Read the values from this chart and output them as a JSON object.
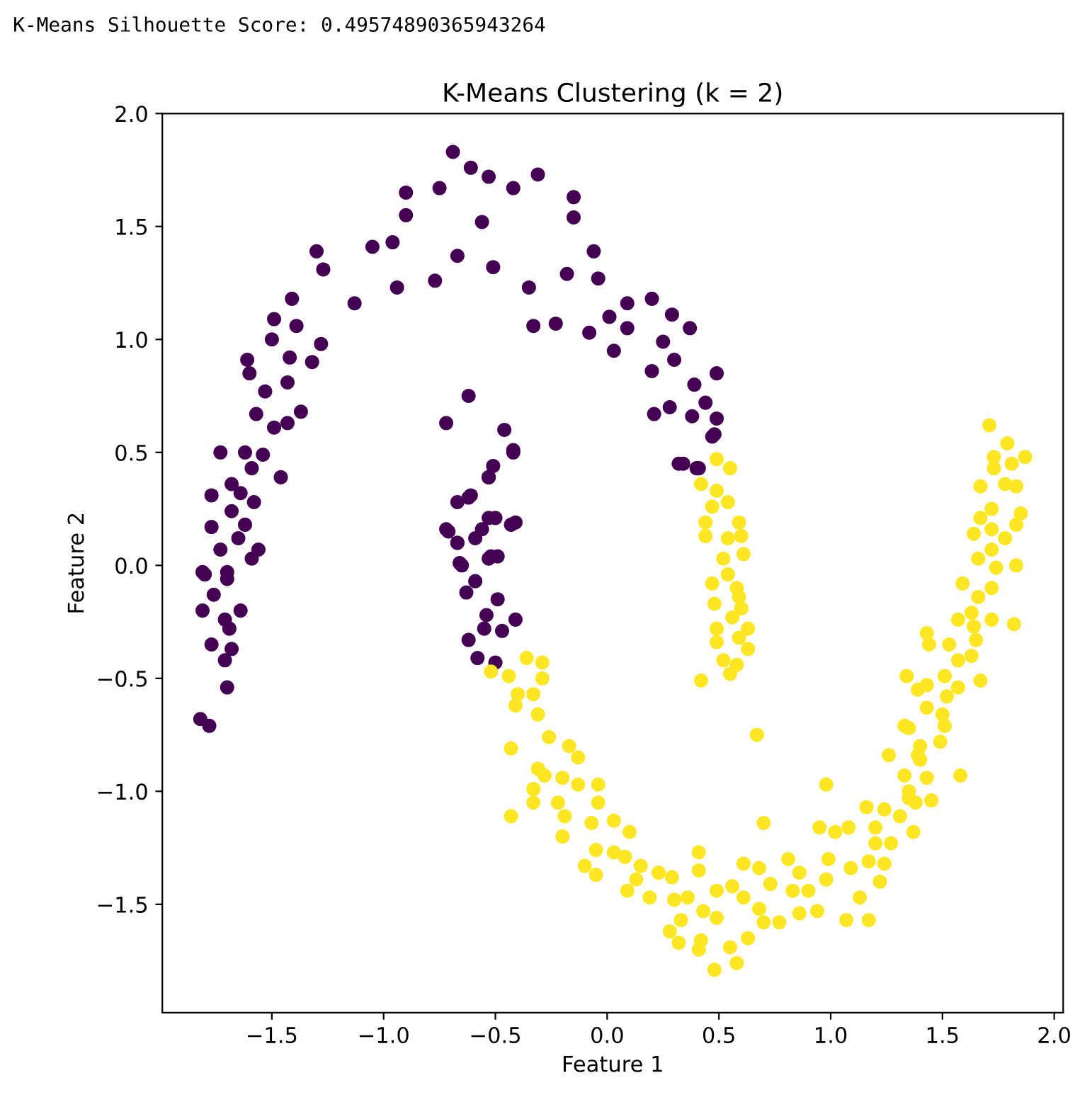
{
  "chart_data": {
    "type": "scatter",
    "title": "K-Means Clustering (k = 2)",
    "xlabel": "Feature 1",
    "ylabel": "Feature 2",
    "annotations": [
      "K-Means Silhouette Score: 0.49574890365943264"
    ],
    "marker": "circle",
    "grid": false,
    "legend": false,
    "xlim": [
      -1.99,
      2.04
    ],
    "ylim": [
      -1.98,
      2.0
    ],
    "xticks": [
      {
        "value": -1.5,
        "label": "−1.5"
      },
      {
        "value": -1.0,
        "label": "−1.0"
      },
      {
        "value": -0.5,
        "label": "−0.5"
      },
      {
        "value": 0.0,
        "label": "0.0"
      },
      {
        "value": 0.5,
        "label": "0.5"
      },
      {
        "value": 1.0,
        "label": "1.0"
      },
      {
        "value": 1.5,
        "label": "1.5"
      },
      {
        "value": 2.0,
        "label": "2.0"
      }
    ],
    "yticks": [
      {
        "value": -1.5,
        "label": "−1.5"
      },
      {
        "value": -1.0,
        "label": "−1.0"
      },
      {
        "value": -0.5,
        "label": "−0.5"
      },
      {
        "value": 0.0,
        "label": "0.0"
      },
      {
        "value": 0.5,
        "label": "0.5"
      },
      {
        "value": 1.0,
        "label": "1.0"
      },
      {
        "value": 1.5,
        "label": "1.5"
      },
      {
        "value": 2.0,
        "label": "2.0"
      }
    ],
    "series": [
      {
        "color": "#440154",
        "x": [
          -0.69,
          -0.61,
          -0.53,
          -0.31,
          -0.9,
          -0.75,
          -0.42,
          -0.15,
          -0.15,
          -0.56,
          -0.9,
          -1.05,
          -0.96,
          -1.3,
          -1.27,
          -1.41,
          -1.13,
          -0.94,
          -0.77,
          -0.67,
          -0.51,
          -0.35,
          -0.33,
          -0.23,
          -0.18,
          -0.06,
          -0.08,
          -0.04,
          0.09,
          0.2,
          0.29,
          0.37,
          0.03,
          0.25,
          0.2,
          0.3,
          0.49,
          0.39,
          0.44,
          0.21,
          0.28,
          0.38,
          0.49,
          0.47,
          0.32,
          0.4,
          0.09,
          0.01,
          -1.49,
          -1.5,
          -1.39,
          -1.28,
          -1.32,
          -1.61,
          -1.6,
          -1.42,
          -1.43,
          -1.53,
          -1.57,
          -1.49,
          -1.37,
          -1.43,
          -1.73,
          -1.62,
          -1.54,
          -1.59,
          -1.46,
          -1.68,
          -1.77,
          -1.64,
          -1.58,
          -1.68,
          -1.77,
          -1.62,
          -1.65,
          -1.73,
          -1.56,
          -1.59,
          -1.81,
          -1.7,
          -1.8,
          -1.7,
          -1.76,
          -1.81,
          -1.64,
          -1.71,
          -1.69,
          -1.77,
          -1.68,
          -1.71,
          -1.7,
          -1.82,
          -1.78,
          -0.62,
          -0.72,
          -0.46,
          -0.42,
          -0.51,
          -0.53,
          -0.67,
          -0.61,
          -0.53,
          -0.43,
          -0.72,
          -0.56,
          -0.67,
          -0.52,
          -0.65,
          -0.71,
          -0.67,
          -0.59,
          -0.5,
          -0.41,
          -0.66,
          -0.53,
          -0.49,
          -0.59,
          -0.63,
          -0.49,
          -0.54,
          -0.41,
          -0.47,
          -0.55,
          -0.62,
          -0.58,
          -0.5,
          -0.62,
          -0.53,
          -0.42,
          0.34,
          0.48,
          0.41
        ],
        "values": [
          1.83,
          1.76,
          1.72,
          1.73,
          1.65,
          1.67,
          1.67,
          1.63,
          1.54,
          1.52,
          1.55,
          1.41,
          1.43,
          1.39,
          1.31,
          1.18,
          1.16,
          1.23,
          1.26,
          1.37,
          1.32,
          1.23,
          1.06,
          1.07,
          1.29,
          1.39,
          1.03,
          1.27,
          1.16,
          1.18,
          1.11,
          1.05,
          0.95,
          0.99,
          0.86,
          0.91,
          0.85,
          0.8,
          0.72,
          0.67,
          0.7,
          0.66,
          0.65,
          0.57,
          0.45,
          0.43,
          1.05,
          1.1,
          1.09,
          1.0,
          1.06,
          0.98,
          0.9,
          0.91,
          0.85,
          0.92,
          0.81,
          0.77,
          0.67,
          0.61,
          0.68,
          0.63,
          0.5,
          0.5,
          0.49,
          0.43,
          0.39,
          0.36,
          0.31,
          0.32,
          0.28,
          0.24,
          0.17,
          0.18,
          0.12,
          0.07,
          0.07,
          0.03,
          -0.03,
          -0.03,
          -0.04,
          -0.06,
          -0.13,
          -0.2,
          -0.2,
          -0.24,
          -0.28,
          -0.35,
          -0.37,
          -0.42,
          -0.54,
          -0.68,
          -0.71,
          0.75,
          0.63,
          0.6,
          0.5,
          0.44,
          0.39,
          0.28,
          0.31,
          0.21,
          0.18,
          0.16,
          0.16,
          0.1,
          0.04,
          0.0,
          0.15,
          0.1,
          0.12,
          0.21,
          0.19,
          0.01,
          0.03,
          0.04,
          -0.07,
          -0.12,
          -0.15,
          -0.22,
          -0.24,
          -0.29,
          -0.28,
          -0.33,
          -0.41,
          -0.43,
          0.3,
          0.39,
          0.51,
          0.45,
          0.58,
          0.43
        ]
      },
      {
        "color": "#fde725",
        "x": [
          0.49,
          0.55,
          0.42,
          0.49,
          0.54,
          0.47,
          0.44,
          0.59,
          0.44,
          0.54,
          0.6,
          0.61,
          0.52,
          0.54,
          0.47,
          0.58,
          0.59,
          0.48,
          0.6,
          0.56,
          0.49,
          0.63,
          0.59,
          0.49,
          0.63,
          0.52,
          0.58,
          0.55,
          0.42,
          0.67,
          0.7,
          0.98,
          -0.52,
          -0.44,
          -0.36,
          -0.29,
          -0.29,
          -0.4,
          -0.33,
          -0.41,
          -0.31,
          -0.43,
          -0.26,
          -0.17,
          -0.13,
          -0.31,
          -0.28,
          -0.2,
          -0.13,
          -0.04,
          -0.33,
          -0.33,
          -0.43,
          -0.22,
          -0.19,
          -0.2,
          -0.04,
          -0.07,
          0.03,
          0.1,
          -0.05,
          0.03,
          -0.1,
          0.08,
          -0.05,
          0.15,
          0.09,
          0.13,
          0.23,
          0.19,
          0.29,
          0.3,
          0.41,
          0.41,
          0.36,
          0.43,
          0.49,
          0.49,
          0.56,
          0.61,
          0.68,
          0.61,
          0.68,
          0.7,
          0.77,
          0.33,
          0.28,
          0.32,
          0.42,
          0.41,
          0.48,
          0.58,
          0.55,
          0.63,
          0.73,
          0.81,
          0.86,
          0.83,
          0.9,
          0.86,
          0.94,
          0.95,
          0.99,
          0.98,
          1.02,
          1.08,
          1.07,
          1.17,
          1.13,
          1.09,
          1.17,
          1.22,
          1.24,
          1.16,
          1.2,
          1.24,
          1.27,
          1.2,
          1.31,
          1.35,
          1.37,
          1.38,
          1.45,
          1.33,
          1.35,
          1.26,
          1.4,
          1.43,
          1.33,
          1.35,
          1.58,
          1.43,
          1.5,
          1.51,
          1.49,
          1.4,
          1.39,
          1.34,
          1.39,
          1.43,
          1.52,
          1.57,
          1.51,
          1.67,
          1.57,
          1.63,
          1.53,
          1.65,
          1.43,
          1.44,
          1.57,
          1.63,
          1.72,
          1.82,
          1.64,
          1.59,
          1.66,
          1.72,
          1.74,
          1.66,
          1.72,
          1.83,
          1.78,
          1.64,
          1.72,
          1.83,
          1.67,
          1.85,
          1.72,
          1.67,
          1.78,
          1.83,
          1.73,
          1.81,
          1.87,
          1.73,
          1.79,
          1.71
        ],
        "values": [
          0.47,
          0.43,
          0.36,
          0.33,
          0.28,
          0.26,
          0.19,
          0.19,
          0.13,
          0.12,
          0.13,
          0.05,
          0.03,
          -0.04,
          -0.08,
          -0.1,
          -0.14,
          -0.17,
          -0.19,
          -0.23,
          -0.28,
          -0.28,
          -0.32,
          -0.34,
          -0.37,
          -0.42,
          -0.44,
          -0.48,
          -0.51,
          -0.75,
          -1.14,
          -0.97,
          -0.47,
          -0.49,
          -0.41,
          -0.43,
          -0.5,
          -0.57,
          -0.57,
          -0.62,
          -0.66,
          -0.81,
          -0.76,
          -0.8,
          -0.85,
          -0.9,
          -0.93,
          -0.94,
          -0.97,
          -0.97,
          -0.99,
          -1.05,
          -1.11,
          -1.05,
          -1.11,
          -1.2,
          -1.05,
          -1.14,
          -1.13,
          -1.18,
          -1.26,
          -1.27,
          -1.33,
          -1.29,
          -1.37,
          -1.33,
          -1.44,
          -1.39,
          -1.36,
          -1.47,
          -1.38,
          -1.48,
          -1.27,
          -1.35,
          -1.47,
          -1.53,
          -1.44,
          -1.56,
          -1.42,
          -1.32,
          -1.34,
          -1.47,
          -1.52,
          -1.58,
          -1.58,
          -1.57,
          -1.62,
          -1.67,
          -1.66,
          -1.7,
          -1.79,
          -1.76,
          -1.69,
          -1.65,
          -1.41,
          -1.3,
          -1.36,
          -1.44,
          -1.44,
          -1.54,
          -1.53,
          -1.16,
          -1.3,
          -1.39,
          -1.18,
          -1.16,
          -1.57,
          -1.57,
          -1.47,
          -1.34,
          -1.31,
          -1.4,
          -1.32,
          -1.07,
          -1.16,
          -1.08,
          -1.23,
          -1.23,
          -1.11,
          -1.03,
          -1.18,
          -1.05,
          -1.04,
          -0.93,
          -1.0,
          -0.84,
          -0.86,
          -0.94,
          -0.71,
          -0.72,
          -0.93,
          -0.63,
          -0.66,
          -0.71,
          -0.78,
          -0.8,
          -0.84,
          -0.49,
          -0.55,
          -0.53,
          -0.58,
          -0.54,
          -0.49,
          -0.51,
          -0.42,
          -0.4,
          -0.35,
          -0.33,
          -0.3,
          -0.35,
          -0.24,
          -0.21,
          -0.24,
          -0.26,
          -0.27,
          -0.08,
          -0.14,
          -0.1,
          -0.01,
          0.03,
          0.07,
          0.0,
          0.12,
          0.14,
          0.16,
          0.18,
          0.21,
          0.23,
          0.25,
          0.35,
          0.36,
          0.35,
          0.43,
          0.45,
          0.48,
          0.48,
          0.54,
          0.62
        ]
      }
    ]
  }
}
